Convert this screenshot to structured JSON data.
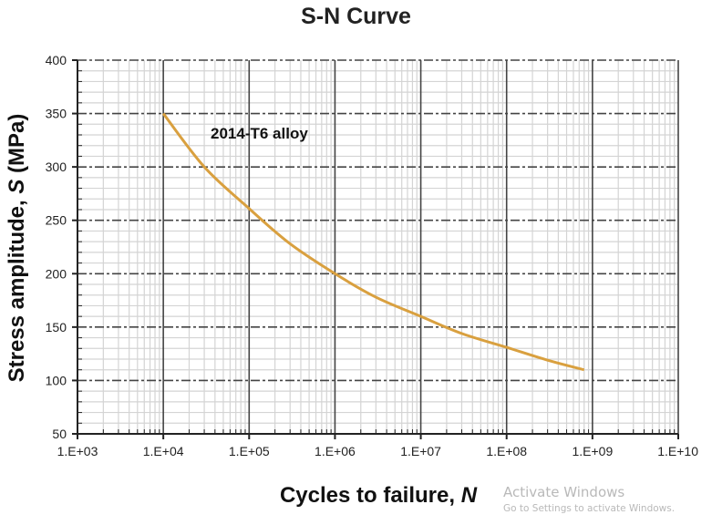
{
  "chart_data": {
    "type": "line",
    "title": "S-N Curve",
    "xlabel": "Cycles to failure, ",
    "xlabel_var": "N",
    "ylabel": "Stress amplitude, ",
    "ylabel_var": "S",
    "ylabel_unit": " (MPa)",
    "x_scale": "log",
    "xlim": [
      1000,
      10000000000
    ],
    "ylim": [
      50,
      400
    ],
    "x_tick_values": [
      1000,
      10000,
      100000,
      1000000,
      10000000,
      100000000,
      1000000000,
      10000000000
    ],
    "x_tick_labels": [
      "1.E+03",
      "1.E+04",
      "1.E+05",
      "1.E+06",
      "1.E+07",
      "1.E+08",
      "1.E+09",
      "1.E+10"
    ],
    "y_tick_labels": [
      "50",
      "100",
      "150",
      "200",
      "250",
      "300",
      "350",
      "400"
    ],
    "y_tick_values": [
      50,
      100,
      150,
      200,
      250,
      300,
      350,
      400
    ],
    "grid": true,
    "series": [
      {
        "color": "#d9a03f",
        "x": [
          10000,
          30000,
          100000,
          300000,
          1000000,
          3000000,
          10000000,
          30000000,
          100000000,
          300000000,
          800000000
        ],
        "y": [
          350,
          300,
          261,
          228,
          200,
          178,
          160,
          144,
          131,
          119,
          110
        ]
      }
    ],
    "annotations": [
      {
        "text": "2014-T6 alloy"
      }
    ]
  },
  "watermark": {
    "line1": "Activate Windows",
    "line2": "Go to Settings to activate Windows."
  }
}
